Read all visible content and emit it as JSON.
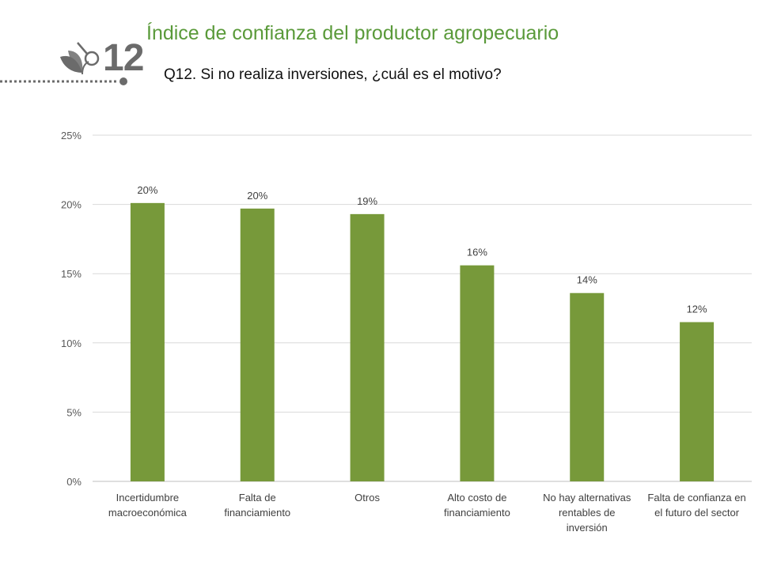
{
  "header": {
    "section_number": "12",
    "title": "Índice de confianza del productor agropecuario",
    "question": "Q12.  Si no realiza inversiones, ¿cuál es el motivo?"
  },
  "colors": {
    "bar": "#77993a",
    "title": "#5a9a3a",
    "logo": "#6b6b6b"
  },
  "chart_data": {
    "type": "bar",
    "categories": [
      [
        "Incertidumbre",
        "macroeconómica"
      ],
      [
        "Falta de",
        "financiamiento"
      ],
      [
        "Otros"
      ],
      [
        "Alto costo de",
        "financiamiento"
      ],
      [
        "No hay alternativas",
        "rentables de",
        "inversión"
      ],
      [
        "Falta de confianza en",
        "el futuro del sector"
      ]
    ],
    "values": [
      20.1,
      19.7,
      19.3,
      15.6,
      13.6,
      11.5
    ],
    "data_labels": [
      "20%",
      "20%",
      "19%",
      "16%",
      "14%",
      "12%"
    ],
    "ylim": [
      0,
      25
    ],
    "yticks": [
      0,
      5,
      10,
      15,
      20,
      25
    ],
    "ytick_labels": [
      "0%",
      "5%",
      "10%",
      "15%",
      "20%",
      "25%"
    ],
    "grid": true
  }
}
